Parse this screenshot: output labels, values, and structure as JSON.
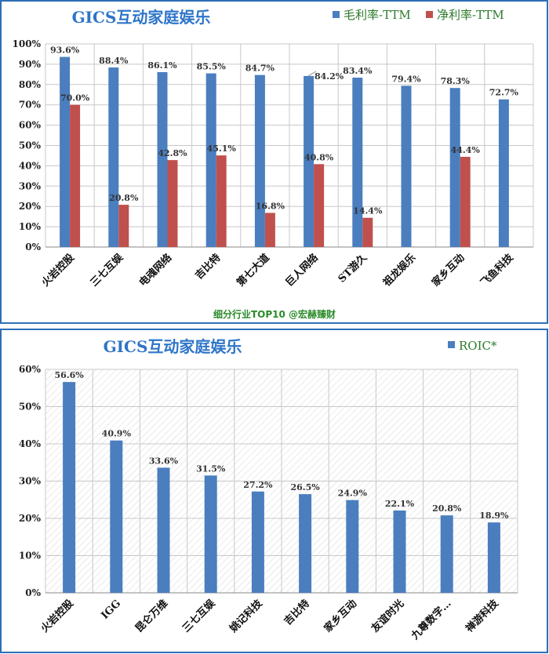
{
  "colors": {
    "gross": "#4a7ebf",
    "net": "#c0504d",
    "roic": "#4a7ebf",
    "title": "#2e75c8",
    "legend": "#2b7a2b",
    "source": "#2a8a2a",
    "border": "#2e6fb8"
  },
  "chart_data": [
    {
      "type": "bar",
      "title": "GICS互动家庭娱乐",
      "source_note": "细分行业TOP10 @宏赫臻财",
      "categories": [
        "火岩控股",
        "三七互娱",
        "电魂网络",
        "吉比特",
        "第七大道",
        "巨人网络",
        "ST游久",
        "祖龙娱乐",
        "家乡互动",
        "飞鱼科技"
      ],
      "series": [
        {
          "name": "毛利率-TTM",
          "values": [
            93.6,
            88.4,
            86.1,
            85.5,
            84.7,
            84.2,
            83.4,
            79.4,
            78.3,
            72.7
          ]
        },
        {
          "name": "净利率-TTM",
          "values": [
            70.0,
            20.8,
            42.8,
            45.1,
            16.8,
            40.8,
            14.4,
            null,
            44.4,
            null
          ]
        }
      ],
      "data_labels": {
        "gross": [
          "93.6%",
          "88.4%",
          "86.1%",
          "85.5%",
          "84.7%",
          "84.2%",
          "83.4%",
          "79.4%",
          "78.3%",
          "72.7%"
        ],
        "net": [
          "70.0%",
          "20.8%",
          "42.8%",
          "45.1%",
          "16.8%",
          "40.8%",
          "14.4%",
          "",
          "44.4%",
          ""
        ]
      },
      "ylim": [
        0,
        100
      ],
      "yticks": [
        "0%",
        "10%",
        "20%",
        "30%",
        "40%",
        "50%",
        "60%",
        "70%",
        "80%",
        "90%",
        "100%"
      ],
      "grid": true,
      "legend": "top-right"
    },
    {
      "type": "bar",
      "title": "GICS互动家庭娱乐",
      "categories": [
        "火岩控股",
        "IGG",
        "昆仑万维",
        "三七互娱",
        "姚记科技",
        "吉比特",
        "家乡互动",
        "友谊时光",
        "九尊数字…",
        "禅游科技"
      ],
      "series": [
        {
          "name": "ROIC*",
          "values": [
            56.6,
            40.9,
            33.6,
            31.5,
            27.2,
            26.5,
            24.9,
            22.1,
            20.8,
            18.9
          ]
        }
      ],
      "data_labels": {
        "roic": [
          "56.6%",
          "40.9%",
          "33.6%",
          "31.5%",
          "27.2%",
          "26.5%",
          "24.9%",
          "22.1%",
          "20.8%",
          "18.9%"
        ]
      },
      "ylim": [
        0,
        60
      ],
      "yticks": [
        "0%",
        "10%",
        "20%",
        "30%",
        "40%",
        "50%",
        "60%"
      ],
      "grid": true,
      "legend": "top-right"
    }
  ]
}
